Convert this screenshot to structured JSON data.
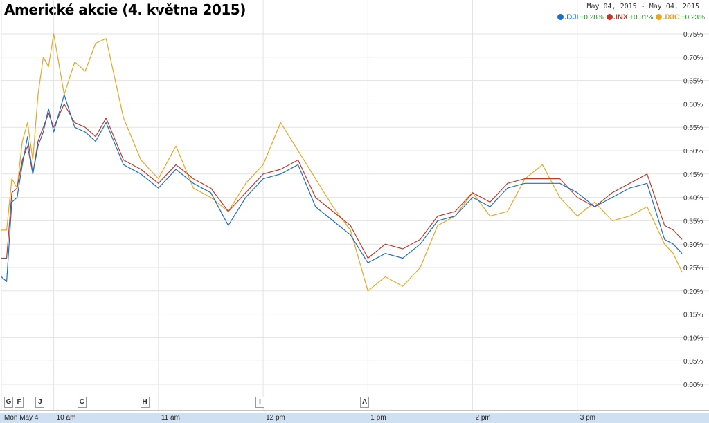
{
  "title": "Americké akcie (4. května 2015)",
  "date_range": "May 04, 2015 - May 04, 2015",
  "legend": [
    {
      "symbol": ".DJI",
      "change": "+0.28%",
      "color": "#1f6fc4"
    },
    {
      "symbol": ".INX",
      "change": "+0.31%",
      "color": "#c0392b"
    },
    {
      "symbol": ".IXIC",
      "change": "+0.23%",
      "color": "#e8a623"
    }
  ],
  "flags": [
    {
      "label": "G",
      "time": "9:30"
    },
    {
      "label": "F",
      "time": "9:36"
    },
    {
      "label": "J",
      "time": "9:48"
    },
    {
      "label": "C",
      "time": "10:12"
    },
    {
      "label": "H",
      "time": "10:48"
    },
    {
      "label": "I",
      "time": "11:54"
    },
    {
      "label": "A",
      "time": "12:54"
    }
  ],
  "time_labels": [
    "Mon May 4",
    "10 am",
    "11 am",
    "12 pm",
    "1 pm",
    "2 pm",
    "3 pm"
  ],
  "chart_data": {
    "type": "line",
    "title": "Americké akcie (4. května 2015)",
    "xlabel": "",
    "ylabel": "",
    "x_range": [
      "09:30",
      "16:00"
    ],
    "ylim": [
      0,
      0.78
    ],
    "y_ticks": [
      0.0,
      0.05,
      0.1,
      0.15,
      0.2,
      0.25,
      0.3,
      0.35,
      0.4,
      0.45,
      0.5,
      0.55,
      0.6,
      0.65,
      0.7,
      0.75
    ],
    "y_tick_labels": [
      "0.00%",
      "0.05%",
      "0.10%",
      "0.15%",
      "0.20%",
      "0.25%",
      "0.30%",
      "0.35%",
      "0.40%",
      "0.45%",
      "0.50%",
      "0.55%",
      "0.60%",
      "0.65%",
      "0.70%",
      "0.75%"
    ],
    "x_ticks": [
      "09:30",
      "10:00",
      "11:00",
      "12:00",
      "13:00",
      "14:00",
      "15:00"
    ],
    "grid": true,
    "legend_position": "top-right",
    "series": [
      {
        "name": ".DJI",
        "color": "#1f6fc4",
        "x": [
          "09:30",
          "09:33",
          "09:36",
          "09:39",
          "09:42",
          "09:45",
          "09:48",
          "09:51",
          "09:54",
          "09:57",
          "10:00",
          "10:06",
          "10:12",
          "10:18",
          "10:24",
          "10:30",
          "10:40",
          "10:50",
          "11:00",
          "11:10",
          "11:20",
          "11:30",
          "11:40",
          "11:50",
          "12:00",
          "12:10",
          "12:20",
          "12:30",
          "12:40",
          "12:50",
          "13:00",
          "13:10",
          "13:20",
          "13:30",
          "13:40",
          "13:50",
          "14:00",
          "14:10",
          "14:20",
          "14:30",
          "14:40",
          "14:50",
          "15:00",
          "15:10",
          "15:20",
          "15:30",
          "15:40",
          "15:50",
          "15:55",
          "16:00"
        ],
        "y": [
          0.23,
          0.22,
          0.39,
          0.4,
          0.47,
          0.53,
          0.45,
          0.51,
          0.54,
          0.59,
          0.54,
          0.62,
          0.55,
          0.54,
          0.52,
          0.56,
          0.47,
          0.45,
          0.42,
          0.46,
          0.43,
          0.41,
          0.34,
          0.4,
          0.44,
          0.45,
          0.47,
          0.38,
          0.35,
          0.32,
          0.26,
          0.28,
          0.27,
          0.3,
          0.35,
          0.36,
          0.4,
          0.38,
          0.42,
          0.43,
          0.43,
          0.43,
          0.41,
          0.38,
          0.4,
          0.42,
          0.43,
          0.31,
          0.3,
          0.28
        ]
      },
      {
        "name": ".INX",
        "color": "#c0392b",
        "x": [
          "09:30",
          "09:33",
          "09:36",
          "09:39",
          "09:42",
          "09:45",
          "09:48",
          "09:51",
          "09:54",
          "09:57",
          "10:00",
          "10:06",
          "10:12",
          "10:18",
          "10:24",
          "10:30",
          "10:40",
          "10:50",
          "11:00",
          "11:10",
          "11:20",
          "11:30",
          "11:40",
          "11:50",
          "12:00",
          "12:10",
          "12:20",
          "12:30",
          "12:40",
          "12:50",
          "13:00",
          "13:10",
          "13:20",
          "13:30",
          "13:40",
          "13:50",
          "14:00",
          "14:10",
          "14:20",
          "14:30",
          "14:40",
          "14:50",
          "15:00",
          "15:10",
          "15:20",
          "15:30",
          "15:40",
          "15:50",
          "15:55",
          "16:00"
        ],
        "y": [
          0.27,
          0.27,
          0.41,
          0.42,
          0.48,
          0.51,
          0.45,
          0.52,
          0.55,
          0.58,
          0.55,
          0.6,
          0.56,
          0.55,
          0.53,
          0.57,
          0.48,
          0.46,
          0.43,
          0.47,
          0.44,
          0.42,
          0.37,
          0.41,
          0.45,
          0.46,
          0.48,
          0.4,
          0.37,
          0.34,
          0.27,
          0.3,
          0.29,
          0.31,
          0.36,
          0.37,
          0.41,
          0.39,
          0.43,
          0.44,
          0.44,
          0.44,
          0.4,
          0.38,
          0.41,
          0.43,
          0.45,
          0.34,
          0.33,
          0.31
        ]
      },
      {
        "name": ".IXIC",
        "color": "#e8a623",
        "x": [
          "09:30",
          "09:33",
          "09:36",
          "09:39",
          "09:42",
          "09:45",
          "09:48",
          "09:51",
          "09:54",
          "09:57",
          "10:00",
          "10:06",
          "10:12",
          "10:18",
          "10:24",
          "10:30",
          "10:40",
          "10:50",
          "11:00",
          "11:10",
          "11:20",
          "11:30",
          "11:40",
          "11:50",
          "12:00",
          "12:10",
          "12:20",
          "12:30",
          "12:40",
          "12:50",
          "13:00",
          "13:10",
          "13:20",
          "13:30",
          "13:40",
          "13:50",
          "14:00",
          "14:10",
          "14:20",
          "14:30",
          "14:40",
          "14:50",
          "15:00",
          "15:10",
          "15:20",
          "15:30",
          "15:40",
          "15:50",
          "15:55",
          "16:00"
        ],
        "y": [
          0.33,
          0.33,
          0.44,
          0.42,
          0.52,
          0.56,
          0.48,
          0.62,
          0.7,
          0.68,
          0.75,
          0.62,
          0.69,
          0.67,
          0.73,
          0.74,
          0.57,
          0.48,
          0.44,
          0.51,
          0.42,
          0.4,
          0.37,
          0.43,
          0.47,
          0.56,
          0.5,
          0.44,
          0.38,
          0.33,
          0.2,
          0.23,
          0.21,
          0.25,
          0.34,
          0.36,
          0.41,
          0.36,
          0.37,
          0.44,
          0.47,
          0.4,
          0.36,
          0.39,
          0.35,
          0.36,
          0.38,
          0.3,
          0.28,
          0.24
        ]
      }
    ]
  }
}
